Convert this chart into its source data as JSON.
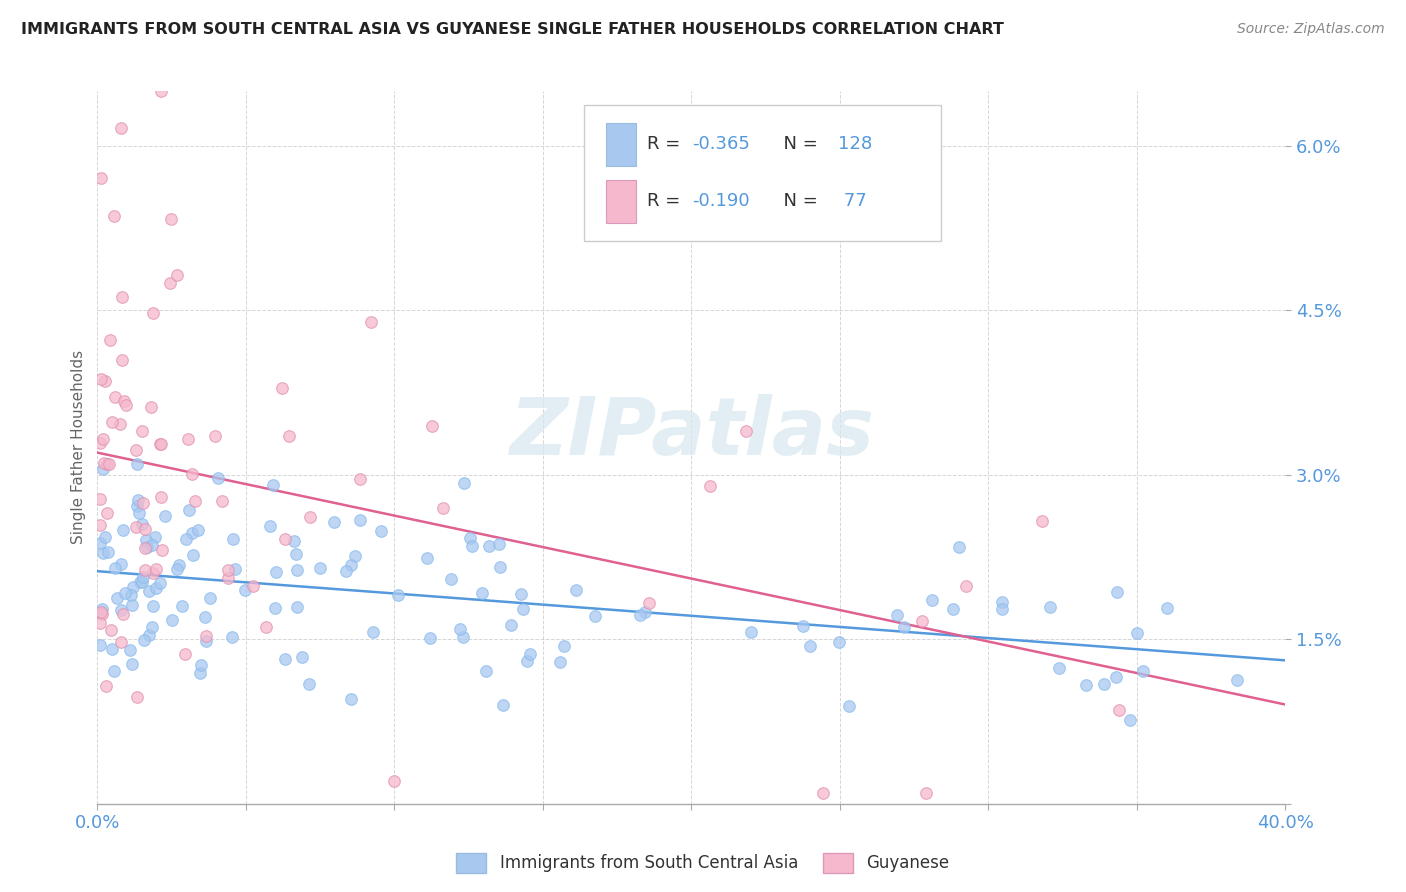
{
  "title": "IMMIGRANTS FROM SOUTH CENTRAL ASIA VS GUYANESE SINGLE FATHER HOUSEHOLDS CORRELATION CHART",
  "source": "Source: ZipAtlas.com",
  "ylabel": "Single Father Households",
  "blue_label": "Immigrants from South Central Asia",
  "pink_label": "Guyanese",
  "blue_R": -0.365,
  "blue_N": 128,
  "pink_R": -0.19,
  "pink_N": 77,
  "blue_color": "#a8c8f0",
  "pink_color": "#f5b8cd",
  "blue_line_color": "#5599dd",
  "pink_line_color": "#e06090",
  "watermark": "ZIPatlas",
  "xlim": [
    0.0,
    0.4
  ],
  "ylim": [
    0.0,
    0.065
  ],
  "background_color": "#ffffff",
  "grid_color": "#cccccc",
  "tick_color": "#5599dd",
  "label_color": "#333333"
}
